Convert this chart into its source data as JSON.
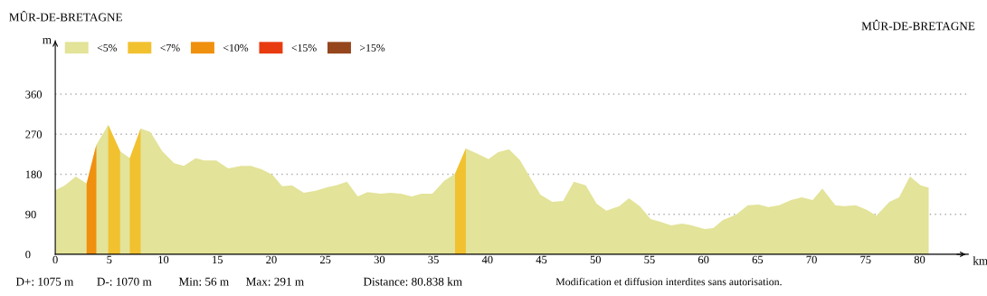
{
  "chart_data": {
    "type": "area",
    "xlabel": "km",
    "ylabel": "m",
    "xlim": [
      0,
      84.5
    ],
    "ylim": [
      0,
      480
    ],
    "xticks": [
      0,
      5,
      10,
      15,
      20,
      25,
      30,
      35,
      40,
      45,
      50,
      55,
      60,
      65,
      70,
      75,
      80
    ],
    "yticks": [
      0,
      90,
      180,
      270,
      360
    ],
    "grid": "y",
    "legend": "top left",
    "series": [
      {
        "name": "<5%",
        "color": "#e3e399",
        "x": [
          0,
          0.9,
          1.9,
          2.9,
          3.8,
          4.9,
          6.0,
          6.9,
          7.9,
          8.8,
          9.9,
          11.0,
          11.9,
          13.0,
          13.8,
          14.9,
          16.0,
          17.2,
          18.1,
          19.1,
          20.1,
          21.0,
          21.9,
          23.0,
          24.1,
          25.2,
          26.0,
          27.0,
          28.0,
          28.9,
          30.1,
          31.0,
          32.0,
          33.0,
          33.9,
          34.9,
          36.0,
          37.0,
          38.0,
          39.1,
          40.1,
          41.0,
          42.0,
          43.0,
          43.9,
          44.9,
          46.0,
          47.0,
          48.0,
          49.1,
          50.1,
          51.0,
          52.2,
          53.1,
          54.1,
          55.1,
          56.0,
          57.0,
          58.0,
          58.9,
          60.1,
          60.9,
          61.8,
          63.0,
          64.1,
          65.1,
          66.0,
          67.0,
          68.1,
          69.1,
          70.1,
          71.0,
          72.2,
          73.0,
          74.1,
          75.1,
          76.0,
          77.2,
          78.1,
          79.1,
          80.1,
          80.84
        ],
        "values": [
          144,
          155,
          175,
          159,
          246,
          291,
          232,
          216,
          283,
          275,
          232,
          205,
          199,
          216,
          211,
          211,
          193,
          199,
          199,
          191,
          179,
          153,
          155,
          138,
          143,
          151,
          155,
          163,
          130,
          140,
          136,
          138,
          136,
          130,
          136,
          136,
          165,
          181,
          238,
          226,
          214,
          230,
          236,
          212,
          175,
          134,
          118,
          120,
          163,
          155,
          114,
          98,
          108,
          126,
          108,
          79,
          73,
          65,
          69,
          65,
          57,
          59,
          77,
          89,
          110,
          112,
          106,
          110,
          122,
          128,
          122,
          148,
          110,
          108,
          110,
          100,
          87,
          118,
          128,
          175,
          155,
          150
        ]
      },
      {
        "name": "<7%",
        "color": "#f2c12f",
        "x": [
          4.9,
          6.0,
          6.5,
          6.9,
          7.9,
          30,
          37.0,
          38.0
        ],
        "values": [
          291,
          232,
          null,
          216,
          283,
          null,
          181,
          238
        ]
      },
      {
        "name": "<10%",
        "color": "#f0900f",
        "x": [
          2.9,
          3.8
        ],
        "values": [
          159,
          246
        ]
      },
      {
        "name": "<15%",
        "color": "#e83b10"
      },
      {
        "name": ">15%",
        "color": "#96461d"
      }
    ],
    "annotations": [
      "MÛR-DE-BRETAGNE",
      "MÛR-DE-BRETAGNE",
      "D+: 1075 m",
      "D-: 1070 m",
      "Min: 56 m",
      "Max: 291 m",
      "Distance: 80.838 km",
      "Modification et diffusion interdites sans autorisation."
    ]
  }
}
